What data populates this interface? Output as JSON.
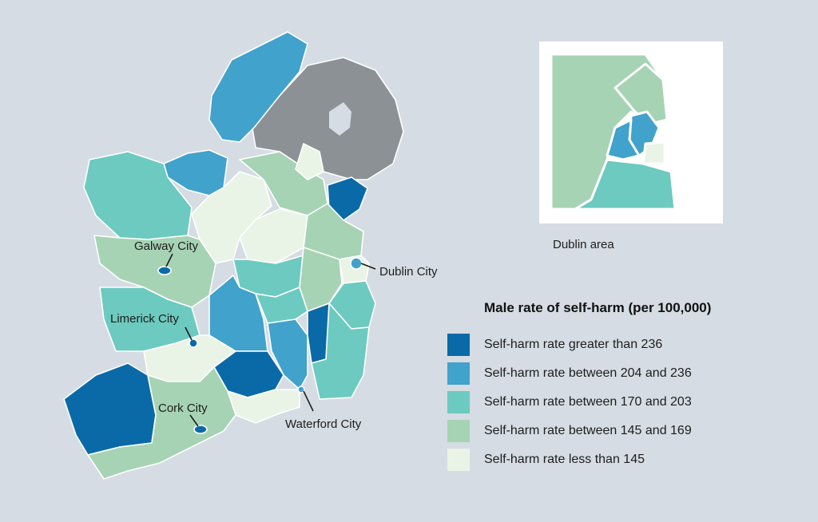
{
  "colors": {
    "cat1": "#0a6aa8",
    "cat2": "#41a2cc",
    "cat3": "#6ccac0",
    "cat4": "#a6d3b4",
    "cat5": "#e9f4e6",
    "nodata": "#8c9196",
    "background": "#d5dce3"
  },
  "labels": {
    "galway": "Galway City",
    "limerick": "Limerick City",
    "cork": "Cork City",
    "waterford": "Waterford City",
    "dublin": "Dublin City",
    "inset": "Dublin area"
  },
  "legend": {
    "title": "Male rate of self-harm (per 100,000)",
    "items": [
      {
        "label": "Self-harm rate greater than 236",
        "color": "#0a6aa8"
      },
      {
        "label": "Self-harm rate between 204 and 236",
        "color": "#41a2cc"
      },
      {
        "label": "Self-harm rate between 170 and 203",
        "color": "#6ccac0"
      },
      {
        "label": "Self-harm rate between 145 and 169",
        "color": "#a6d3b4"
      },
      {
        "label": "Self-harm rate less than 145",
        "color": "#e9f4e6"
      }
    ]
  }
}
